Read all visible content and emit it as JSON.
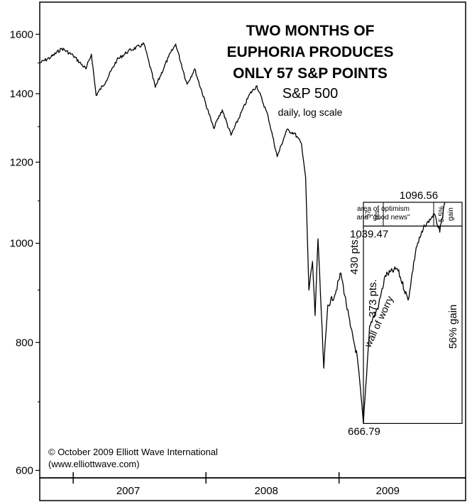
{
  "chart_data": {
    "type": "line",
    "title_lines": [
      "TWO MONTHS OF",
      "EUPHORIA PRODUCES",
      "ONLY 57 S&P POINTS"
    ],
    "subtitle": "S&P 500",
    "subtitle2": "daily, log scale",
    "scale": "log",
    "ylim": [
      590,
      1720
    ],
    "y_ticks": [
      1600,
      1400,
      1200,
      1000,
      800,
      600
    ],
    "x_tick_labels": [
      "2007",
      "2008",
      "2009"
    ],
    "grid": false,
    "series": [
      {
        "values_by_date": [
          [
            "2006-10-01",
            1500
          ],
          [
            "2006-11-01",
            1520
          ],
          [
            "2006-12-01",
            1550
          ],
          [
            "2007-01-01",
            1525
          ],
          [
            "2007-02-05",
            1480
          ],
          [
            "2007-02-20",
            1530
          ],
          [
            "2007-03-05",
            1395
          ],
          [
            "2007-04-01",
            1440
          ],
          [
            "2007-05-01",
            1510
          ],
          [
            "2007-06-01",
            1540
          ],
          [
            "2007-07-15",
            1565
          ],
          [
            "2007-08-15",
            1420
          ],
          [
            "2007-09-20",
            1520
          ],
          [
            "2007-10-10",
            1565
          ],
          [
            "2007-11-10",
            1430
          ],
          [
            "2007-12-01",
            1480
          ],
          [
            "2008-01-22",
            1295
          ],
          [
            "2008-02-15",
            1350
          ],
          [
            "2008-03-10",
            1275
          ],
          [
            "2008-05-01",
            1400
          ],
          [
            "2008-05-20",
            1425
          ],
          [
            "2008-06-20",
            1330
          ],
          [
            "2008-07-15",
            1215
          ],
          [
            "2008-08-10",
            1290
          ],
          [
            "2008-09-01",
            1280
          ],
          [
            "2008-09-20",
            1250
          ],
          [
            "2008-10-01",
            1160
          ],
          [
            "2008-10-10",
            900
          ],
          [
            "2008-10-20",
            960
          ],
          [
            "2008-10-27",
            850
          ],
          [
            "2008-11-04",
            1010
          ],
          [
            "2008-11-20",
            755
          ],
          [
            "2008-12-01",
            870
          ],
          [
            "2008-12-20",
            890
          ],
          [
            "2009-01-06",
            935
          ],
          [
            "2009-02-01",
            830
          ],
          [
            "2009-02-20",
            775
          ],
          [
            "2009-03-09",
            666.79
          ],
          [
            "2009-03-26",
            830
          ],
          [
            "2009-04-20",
            870
          ],
          [
            "2009-05-08",
            930
          ],
          [
            "2009-06-10",
            945
          ],
          [
            "2009-07-10",
            880
          ],
          [
            "2009-08-01",
            990
          ],
          [
            "2009-08-25",
            1039.47
          ],
          [
            "2009-09-20",
            1068
          ],
          [
            "2009-10-05",
            1025
          ],
          [
            "2009-10-19",
            1096.56
          ]
        ]
      }
    ],
    "box_left_date": "2009-03-09",
    "annotations": {
      "peak_value": "1096.56",
      "base_value": "1039.47",
      "low_value": "666.79",
      "pts_57": "57",
      "pts_word": "pts.",
      "optimism_line1": "area of optimism",
      "optimism_line2": "and \"good news\"",
      "gain_small_pct": "5.5%",
      "gain_small_word": "gain",
      "pts_430": "430 pts.",
      "pts_373": "373 pts.",
      "wall": "wall of worry",
      "gain_big": "56% gain"
    },
    "credit_line1": "© October 2009 Elliott Wave International",
    "credit_line2": "(www.elliottwave.com)"
  }
}
